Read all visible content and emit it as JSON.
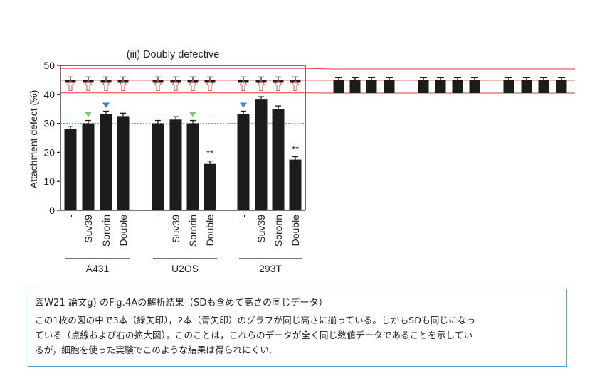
{
  "chart_data": {
    "type": "bar",
    "title": "(iii) Doubly defective",
    "ylabel": "Attachment defect (%)",
    "ylim": [
      0,
      50
    ],
    "yticks": [
      "0",
      "10",
      "20",
      "30",
      "40",
      "50"
    ],
    "grid": false,
    "categories": [
      "-",
      "Suv39",
      "Sororin",
      "Double",
      "-",
      "Suv39",
      "Sororin",
      "Double",
      "-",
      "Suv39",
      "Sororin",
      "Double"
    ],
    "groups": [
      "A431",
      "U2OS",
      "293T"
    ],
    "values": [
      28,
      30,
      33.2,
      32.5,
      30,
      31.3,
      30,
      16,
      33.2,
      38.2,
      35,
      17.5
    ],
    "errors": [
      1,
      1,
      1,
      1,
      1,
      1,
      1,
      1,
      1,
      1,
      1,
      1
    ],
    "significance": [
      "",
      "",
      "",
      "",
      "",
      "",
      "",
      "**",
      "",
      "",
      "",
      "**"
    ],
    "inset_values": [
      45,
      45,
      45,
      45,
      45,
      45,
      45,
      45,
      45,
      45,
      45,
      45
    ],
    "inset_errors": [
      1,
      1,
      1,
      1,
      1,
      1,
      1,
      1,
      1,
      1,
      1,
      1
    ],
    "green_markers": [
      1,
      2,
      6
    ],
    "blue_markers": [
      2,
      8
    ],
    "ref_lines": [
      33.2,
      30
    ],
    "zoom_band": [
      40.5,
      49
    ]
  },
  "colors": {
    "bar": "#1c1c1c",
    "green_marker": "#7cc576",
    "blue_marker": "#3d7fc9",
    "dotted_line": "#5b8fd6",
    "red_line": "#e03a3a",
    "up_arrow": "#e05a50",
    "caption_border": "#58a6cf"
  },
  "caption": {
    "title": "図W21 論文g) のFig.4Aの解析結果（SDも含めて高さの同じデータ）",
    "line1": "この1枚の図の中で3本（緑矢印），2本（青矢印）のグラフが同じ高さに揃っている。しかもSDも同じになっ",
    "line2": "ている（点線および右の拡大図）。このことは，これらのデータが全く同じ数値データであることを示してい",
    "line3": "るが，細胞を使った実験でこのような結果は得られにくい."
  }
}
